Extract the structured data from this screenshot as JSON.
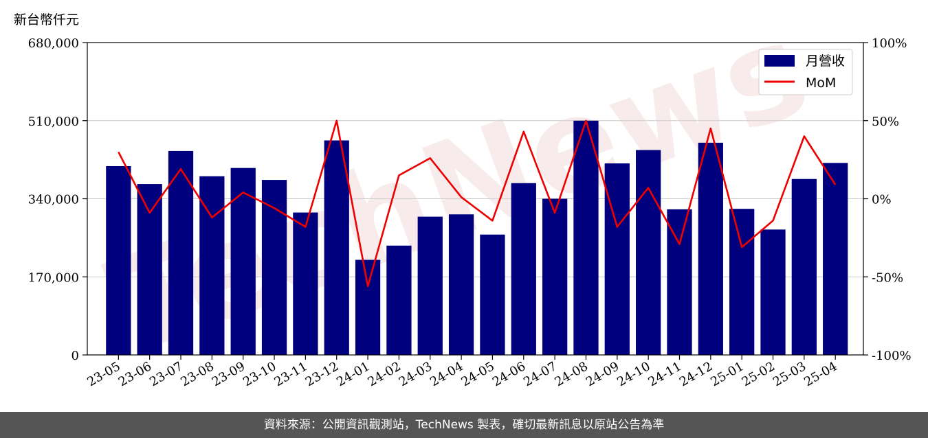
{
  "unit_label": "新台幣仟元",
  "watermark": "TechNews",
  "footer": "資料來源：公開資訊觀測站，TechNews 製表，確切最新訊息以原站公告為準",
  "colors": {
    "bar": "#00007f",
    "line": "#ee0000",
    "grid": "#cccccc",
    "footer_bg": "#555555"
  },
  "chart_data": {
    "type": "bar",
    "categories": [
      "23-05",
      "23-06",
      "23-07",
      "23-08",
      "23-09",
      "23-10",
      "23-11",
      "23-12",
      "24-01",
      "24-02",
      "24-03",
      "24-04",
      "24-05",
      "24-06",
      "24-07",
      "24-08",
      "24-09",
      "24-10",
      "24-11",
      "24-12",
      "25-01",
      "25-02",
      "25-03",
      "25-04"
    ],
    "series": [
      {
        "name": "月營收",
        "type": "bar",
        "axis": "left",
        "values": [
          411000,
          372000,
          444000,
          389000,
          407000,
          381000,
          310000,
          467000,
          207000,
          238000,
          301000,
          306000,
          262000,
          374000,
          340000,
          510000,
          417000,
          446000,
          317000,
          462000,
          318000,
          273000,
          383000,
          418000
        ]
      },
      {
        "name": "MoM",
        "type": "line",
        "axis": "right",
        "values": [
          30,
          -9,
          19,
          -12,
          4,
          -6,
          -18,
          50,
          -56,
          15,
          26,
          1,
          -14,
          43,
          -9,
          50,
          -18,
          7,
          -29,
          45,
          -31,
          -14,
          40,
          9
        ]
      }
    ],
    "yticks_left": [
      "0",
      "170,000",
      "340,000",
      "510,000",
      "680,000"
    ],
    "yticks_right": [
      "-100%",
      "-50%",
      "0%",
      "50%",
      "100%"
    ],
    "ylim_left": [
      0,
      680000
    ],
    "ylim_right": [
      -100,
      100
    ],
    "grid": true,
    "legend_position": "top-right"
  }
}
